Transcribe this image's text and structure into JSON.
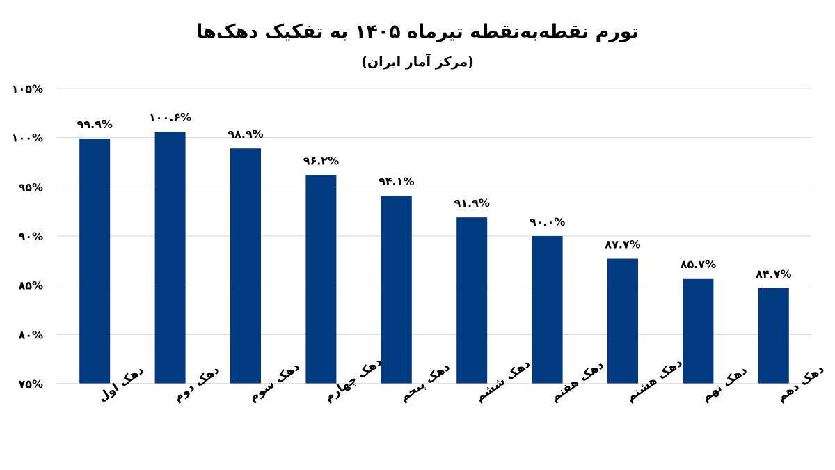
{
  "chart_data": {
    "type": "bar",
    "title": "تورم نقطه‌به‌نقطه تیرماه ۱۴۰۵ به تفکیک دهک‌ها",
    "subtitle": "(مرکز آمار ایران)",
    "categories": [
      "دهک اول",
      "دهک دوم",
      "دهک سوم",
      "دهک چهارم",
      "دهک پنجم",
      "دهک ششم",
      "دهک هفتم",
      "دهک هشتم",
      "دهک نهم",
      "دهک دهم"
    ],
    "values": [
      99.9,
      100.6,
      98.9,
      96.2,
      94.1,
      91.9,
      90.0,
      87.7,
      85.7,
      84.7
    ],
    "data_labels": [
      "۹۹.۹%",
      "۱۰۰.۶%",
      "۹۸.۹%",
      "۹۶.۲%",
      "۹۴.۱%",
      "۹۱.۹%",
      "۹۰.۰%",
      "۸۷.۷%",
      "۸۵.۷%",
      "۸۴.۷%"
    ],
    "y_ticks": [
      {
        "value": 75,
        "label": "۷۵%"
      },
      {
        "value": 80,
        "label": "۸۰%"
      },
      {
        "value": 85,
        "label": "۸۵%"
      },
      {
        "value": 90,
        "label": "۹۰%"
      },
      {
        "value": 95,
        "label": "۹۵%"
      },
      {
        "value": 100,
        "label": "۱۰۰%"
      },
      {
        "value": 105,
        "label": "۱۰۵%"
      }
    ],
    "ylim": [
      75,
      105
    ],
    "grid": true,
    "legend": "none",
    "bar_color": "#003b82",
    "grid_color": "#d9d9d9"
  }
}
